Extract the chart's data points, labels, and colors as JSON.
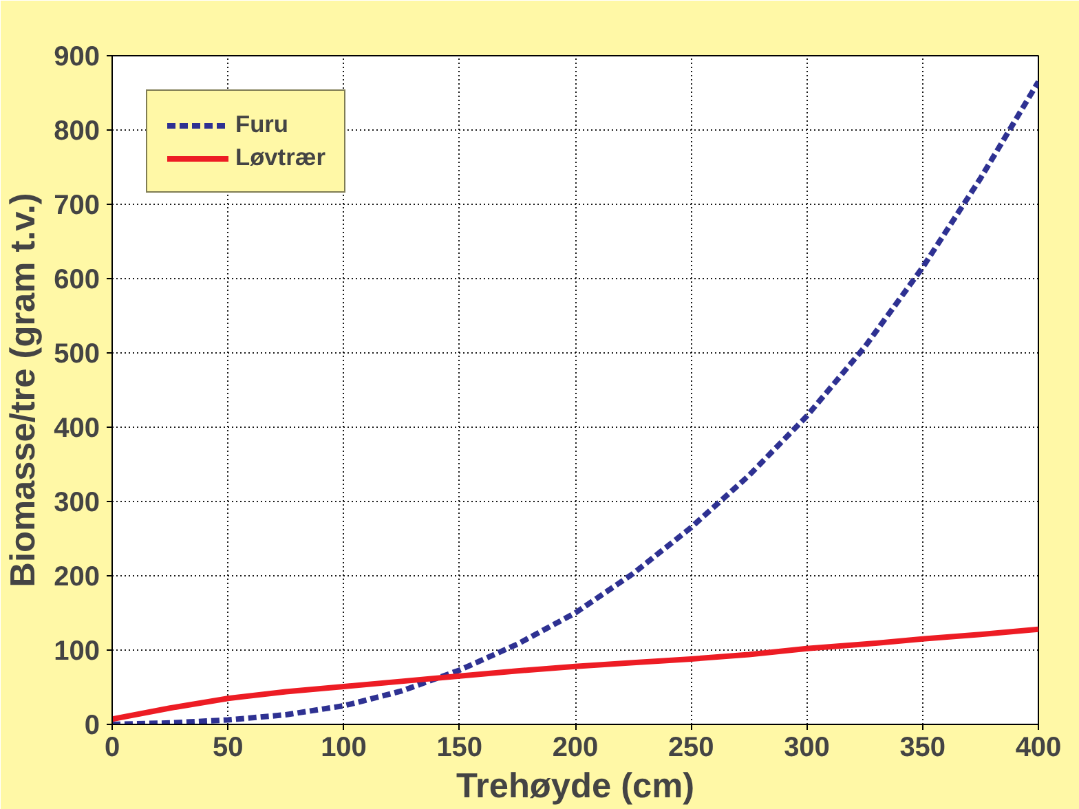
{
  "chart_data": {
    "type": "line",
    "xlabel": "Trehøyde (cm)",
    "ylabel": "Biomasse/tre (gram t.v.)",
    "x": [
      0,
      25,
      50,
      75,
      100,
      125,
      150,
      175,
      200,
      225,
      250,
      275,
      300,
      325,
      350,
      375,
      400
    ],
    "series": [
      {
        "name": "Furu",
        "color": "#2e3192",
        "line_style": "dashed",
        "values": [
          0,
          2,
          6,
          13,
          25,
          45,
          73,
          108,
          150,
          203,
          265,
          335,
          415,
          508,
          615,
          735,
          865
        ]
      },
      {
        "name": "Løvtrær",
        "color": "#ed1c24",
        "line_style": "solid",
        "values": [
          7,
          22,
          35,
          44,
          51,
          58,
          65,
          72,
          78,
          83,
          88,
          94,
          102,
          108,
          115,
          121,
          128
        ]
      }
    ],
    "xlim": [
      0,
      400
    ],
    "xticks": [
      0,
      50,
      100,
      150,
      200,
      250,
      300,
      350,
      400
    ],
    "ylim": [
      0,
      900
    ],
    "yticks": [
      0,
      100,
      200,
      300,
      400,
      500,
      600,
      700,
      800,
      900
    ],
    "grid": true,
    "legend": "top left",
    "marker": "none"
  }
}
